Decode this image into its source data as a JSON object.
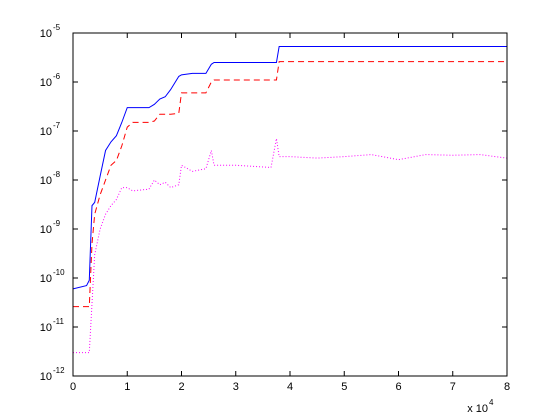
{
  "chart_data": {
    "type": "line",
    "log_y": true,
    "xlim": [
      0,
      80000
    ],
    "xticks": [
      0,
      {
        "value": 10000,
        "label": "1"
      },
      {
        "value": 20000,
        "label": "2"
      },
      {
        "value": 30000,
        "label": "3"
      },
      {
        "value": 40000,
        "label": "4"
      },
      {
        "value": 50000,
        "label": "5"
      },
      {
        "value": 60000,
        "label": "6"
      },
      {
        "value": 70000,
        "label": "7"
      },
      {
        "value": 80000,
        "label": "8"
      }
    ],
    "x_multiplier": {
      "label": "x 10",
      "exponent": "4"
    },
    "ylim": [
      1e-12,
      1e-05
    ],
    "yticks": [
      {
        "value": 1e-12,
        "label": "10",
        "exponent": "-12"
      },
      {
        "value": 1e-11,
        "label": "10",
        "exponent": "-11"
      },
      {
        "value": 1e-10,
        "label": "10",
        "exponent": "-10"
      },
      {
        "value": 1e-09,
        "label": "10",
        "exponent": "-9"
      },
      {
        "value": 1e-08,
        "label": "10",
        "exponent": "-8"
      },
      {
        "value": 1e-07,
        "label": "10",
        "exponent": "-7"
      },
      {
        "value": 1e-06,
        "label": "10",
        "exponent": "-6"
      },
      {
        "value": 1e-05,
        "label": "10",
        "exponent": "-5"
      }
    ],
    "x": [
      0,
      2500,
      3000,
      3500,
      4000,
      5000,
      6000,
      7000,
      8000,
      9000,
      10000,
      11000,
      14000,
      15000,
      16000,
      17000,
      18000,
      19500,
      20000,
      22000,
      24500,
      25500,
      26000,
      30000,
      36500,
      37500,
      38000,
      40000,
      45000,
      50000,
      55000,
      60000,
      65000,
      70000,
      75000,
      80000
    ],
    "series": [
      {
        "color": "#0000ff",
        "line_style": "solid",
        "values": [
          6e-11,
          7e-11,
          9e-11,
          3e-09,
          3.5e-09,
          1.2e-08,
          4e-08,
          6e-08,
          8e-08,
          1.5e-07,
          3e-07,
          3e-07,
          3e-07,
          3.5e-07,
          4.5e-07,
          5e-07,
          7e-07,
          1.3e-06,
          1.4e-06,
          1.5e-06,
          1.5e-06,
          2.3e-06,
          2.5e-06,
          2.5e-06,
          2.5e-06,
          2.5e-06,
          5.3e-06,
          5.3e-06,
          5.3e-06,
          5.3e-06,
          5.3e-06,
          5.3e-06,
          5.3e-06,
          5.3e-06,
          5.3e-06,
          5.3e-06
        ]
      },
      {
        "color": "#ff0000",
        "line_style": "dashed",
        "values": [
          2.6e-11,
          2.6e-11,
          2.6e-11,
          5e-10,
          2e-09,
          5e-09,
          1e-08,
          2e-08,
          2.5e-08,
          5e-08,
          1.2e-07,
          1.5e-07,
          1.5e-07,
          1.6e-07,
          2.2e-07,
          2.2e-07,
          2.2e-07,
          2.3e-07,
          6e-07,
          6e-07,
          6e-07,
          1e-06,
          1.1e-06,
          1.1e-06,
          1.1e-06,
          1.1e-06,
          2.6e-06,
          2.6e-06,
          2.6e-06,
          2.6e-06,
          2.6e-06,
          2.6e-06,
          2.6e-06,
          2.6e-06,
          2.6e-06,
          2.6e-06
        ]
      },
      {
        "color": "#ff00ff",
        "line_style": "dotted",
        "values": [
          3e-12,
          3e-12,
          3e-12,
          3e-11,
          3e-10,
          1e-09,
          2e-09,
          3e-09,
          4e-09,
          7e-09,
          7e-09,
          6e-09,
          6.5e-09,
          1e-08,
          8e-09,
          9e-09,
          7e-09,
          8e-09,
          2e-08,
          1.5e-08,
          1.7e-08,
          4e-08,
          2e-08,
          2e-08,
          1.8e-08,
          7e-08,
          3e-08,
          3e-08,
          2.8e-08,
          3e-08,
          3.3e-08,
          2.6e-08,
          3.3e-08,
          3.2e-08,
          3.3e-08,
          2.8e-08
        ]
      }
    ]
  }
}
